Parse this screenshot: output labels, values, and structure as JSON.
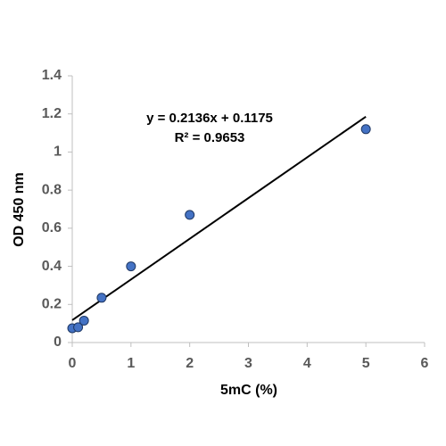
{
  "chart_data": {
    "type": "scatter",
    "x_label": "5mC (%)",
    "y_label": "OD 450 nm",
    "series": [
      {
        "color": "#4472c4",
        "x": [
          0,
          0.1,
          0.2,
          0.5,
          1,
          2,
          5
        ],
        "values": [
          0.075,
          0.08,
          0.115,
          0.235,
          0.4,
          0.67,
          1.12
        ]
      }
    ],
    "trendline": {
      "equation": "y = 0.2136x + 0.1175",
      "r_squared": "R² = 0.9653",
      "slope": 0.2136,
      "intercept": 0.1175,
      "color": "#000000"
    },
    "xlim": [
      0,
      6
    ],
    "xticks": [
      0,
      1,
      2,
      3,
      4,
      5,
      6
    ],
    "ylim": [
      0,
      1.4
    ],
    "yticks": [
      0,
      0.2,
      0.4,
      0.6,
      0.8,
      1,
      1.2,
      1.4
    ],
    "grid": false
  }
}
